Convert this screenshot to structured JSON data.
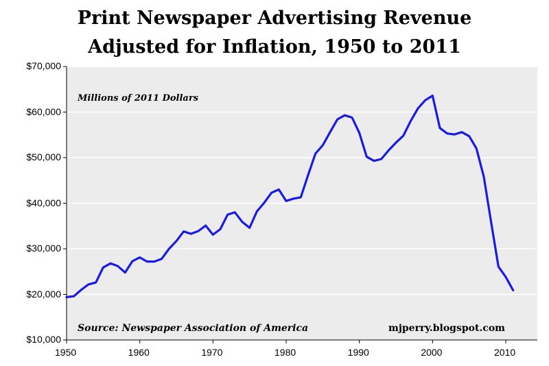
{
  "chart_data": {
    "type": "line",
    "title": "Print Newspaper Advertising Revenue",
    "subtitle": "Adjusted for Inflation, 1950 to 2011",
    "xlabel": "",
    "ylabel": "",
    "units_note": "Millions of 2011 Dollars",
    "source": "Source: Newspaper Association of America",
    "credit": "mjperry.blogspot.com",
    "xlim": [
      1950,
      2012
    ],
    "ylim": [
      10000,
      70000
    ],
    "x_ticks": [
      "1950",
      "1960",
      "1970",
      "1980",
      "1990",
      "2000",
      "2010"
    ],
    "y_ticks": [
      "$10,000",
      "$20,000",
      "$30,000",
      "$40,000",
      "$50,000",
      "$60,000",
      "$70,000"
    ],
    "grid": true,
    "line_color": "#1a1ae6",
    "x": [
      1950,
      1951,
      1952,
      1953,
      1954,
      1955,
      1956,
      1957,
      1958,
      1959,
      1960,
      1961,
      1962,
      1963,
      1964,
      1965,
      1966,
      1967,
      1968,
      1969,
      1970,
      1971,
      1972,
      1973,
      1974,
      1975,
      1976,
      1977,
      1978,
      1979,
      1980,
      1981,
      1982,
      1983,
      1984,
      1985,
      1986,
      1987,
      1988,
      1989,
      1990,
      1991,
      1992,
      1993,
      1994,
      1995,
      1996,
      1997,
      1998,
      1999,
      2000,
      2001,
      2002,
      2003,
      2004,
      2005,
      2006,
      2007,
      2008,
      2009,
      2010,
      2011
    ],
    "series": [
      {
        "values": [
          19400,
          19600,
          21000,
          22200,
          22600,
          25900,
          26800,
          26200,
          24800,
          27300,
          28100,
          27200,
          27200,
          27800,
          30000,
          31700,
          33800,
          33300,
          33900,
          35100,
          33100,
          34300,
          37500,
          38000,
          35900,
          34600,
          38200,
          40100,
          42300,
          43000,
          40500,
          41000,
          41300,
          46200,
          50900,
          52700,
          55600,
          58400,
          59300,
          58800,
          55400,
          50200,
          49300,
          49700,
          51600,
          53300,
          54800,
          58000,
          60800,
          62600,
          63600,
          56500,
          55300,
          55100,
          55600,
          54700,
          52000,
          45800,
          35800,
          26100,
          23800,
          20900
        ]
      }
    ]
  }
}
